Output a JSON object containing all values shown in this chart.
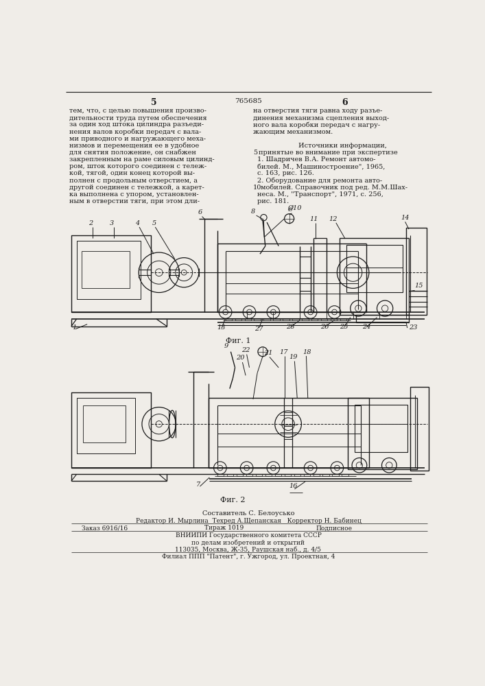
{
  "page_number_left": "5",
  "page_number_right": "6",
  "patent_number": "765685",
  "bg_color": "#f0ede8",
  "text_color": "#1a1a1a",
  "left_column_text": [
    "тем, что, с целью повышения произво-",
    "дительности труда путем обеспечения",
    "за один ход штока цилиндра разъеди-",
    "нения валов коробки передач с вала-",
    "ми приводного и нагружающего меха-",
    "низмов и перемещения ее в удобное",
    "для снятия положение, он снабжен",
    "закрепленным на раме силовым цилинд-",
    "ром, шток которого соединен с тележ-",
    "кой, тягой, один конец которой вы-",
    "полнен с продольным отверстием, а",
    "другой соединен с тележкой, а карет-",
    "ка выполнена с упором, установлен-",
    "ным в отверстии тяги, при этом дли-"
  ],
  "right_col_lines_0_3": [
    "на отверстия тяги равна ходу разъе-",
    "динения механизма сцепления выход-",
    "ного вала коробки передач с нагру-",
    "жающим механизмом."
  ],
  "sources_header": "Источники информации,",
  "sources_line1a": "5 принятые во внимание при экспертизе",
  "sources_1": "1. Шадричев В.А. Ремонт автомо-",
  "sources_2": "билей. М., Машиностроение\", 1965,",
  "sources_3": "с. 163, рис. 126.",
  "sources_4": "2. Оборудование для ремонта авто-",
  "sources_5": "10 мобилей. Справочник под ред. М.М.Шах-",
  "sources_6": "неса. М., \"Транспорт\", 1971, с. 256,",
  "sources_7": "рис. 181.",
  "fig1_label": "Фиг. 1",
  "fig2_label": "Фиг. 2",
  "footer_line0": "Составитель С. Белоусько",
  "footer_line1a": "Редактор И. Мырлина  Техред А.Щепанская   Корректор Н. Бабинец",
  "footer_line2a": "Заказ 6916/16",
  "footer_line2b": "Тираж 1019",
  "footer_line2c": "Подписное",
  "footer_line3": "ВНИИПИ Государственного комитета СССР",
  "footer_line4": "по делам изобретений и открытий",
  "footer_line5": "113035, Москва, Ж-35, Раушская наб., д. 4/5",
  "footer_line6": "Филиал ППП \"Патент\", г. Ужгород, ул. Проектная, 4"
}
